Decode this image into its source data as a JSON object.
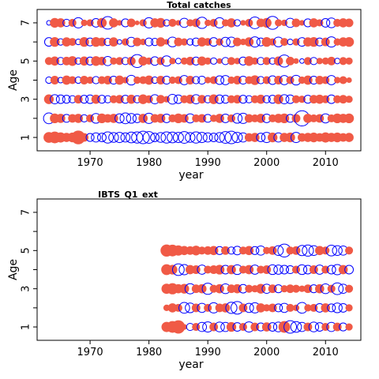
{
  "chart_data": [
    {
      "type": "scatter",
      "title": "Total catches",
      "xlabel": "year",
      "ylabel": "Age",
      "xlim": [
        1961,
        2016
      ],
      "ylim": [
        0.3,
        7.7
      ],
      "xticks": [
        "1970",
        "1980",
        "1990",
        "2000",
        "2010"
      ],
      "yticks": [
        "1",
        "3",
        "5",
        "7"
      ],
      "years": [
        1963,
        2014
      ],
      "ages": [
        1,
        2,
        3,
        4,
        5,
        6,
        7
      ],
      "legend": "none",
      "grid": false,
      "colors": {
        "positive": "#f05a46",
        "negative": "#0000ff"
      },
      "residuals": [
        {
          "age": 7,
          "values": [
            -0.2,
            0.9,
            0.8,
            -0.5,
            0.6,
            -1.0,
            0.4,
            0.5,
            -0.7,
            0.9,
            -1.5,
            0.8,
            0.3,
            -0.6,
            0.7,
            0.2,
            0.5,
            -1.0,
            0.8,
            0.9,
            -0.4,
            0.6,
            0.3,
            -0.8,
            0.5,
            0.7,
            -1.2,
            0.4,
            0.6,
            -1.0,
            0.5,
            0.8,
            -0.4,
            0.3,
            0.6,
            -1.3,
            0.7,
            0.9,
            -1.6,
            0.5,
            0.4,
            -0.8,
            0.7,
            0.3,
            -0.6,
            0.8,
            0.5,
            -0.7,
            -0.9,
            0.6,
            0.8,
            0.7
          ]
        },
        {
          "age": 6,
          "values": [
            -0.7,
            0.9,
            -0.4,
            0.8,
            0.6,
            -0.3,
            0.9,
            -0.6,
            0.9,
            0.7,
            -0.5,
            0.8,
            -0.2,
            0.5,
            -0.8,
            0.7,
            0.4,
            -0.6,
            -0.5,
            0.8,
            0.3,
            -0.9,
            0.7,
            0.5,
            -0.4,
            -0.6,
            0.8,
            0.6,
            -0.7,
            0.5,
            -0.8,
            -0.9,
            0.7,
            0.4,
            0.8,
            -1.0,
            -0.6,
            0.9,
            0.5,
            -0.9,
            0.6,
            -0.3,
            0.5,
            -0.7,
            0.8,
            0.9,
            -0.6,
            0.7,
            -1.0,
            0.5,
            0.8,
            0.9
          ]
        },
        {
          "age": 5,
          "values": [
            0.6,
            0.8,
            -0.5,
            0.7,
            0.9,
            -0.4,
            0.8,
            -0.6,
            0.9,
            0.7,
            -0.8,
            0.5,
            0.6,
            -0.5,
            0.7,
            -1.6,
            0.8,
            0.5,
            -0.7,
            0.6,
            -1.0,
            0.4,
            -0.3,
            0.5,
            0.7,
            -0.6,
            0.8,
            0.5,
            -0.4,
            0.3,
            -0.5,
            0.6,
            0.4,
            -0.6,
            0.9,
            0.5,
            -0.5,
            0.6,
            -0.4,
            0.8,
            -1.4,
            0.7,
            0.3,
            -0.2,
            0.6,
            -0.5,
            0.4,
            0.5,
            0.7,
            -0.3,
            0.6,
            0.5
          ]
        },
        {
          "age": 4,
          "values": [
            -0.4,
            0.7,
            -0.3,
            0.8,
            0.6,
            -0.4,
            0.7,
            0.5,
            -0.5,
            0.6,
            0.7,
            -0.6,
            0.8,
            0.4,
            -0.9,
            0.5,
            0.6,
            0.8,
            -0.4,
            0.7,
            -0.6,
            0.5,
            0.6,
            -0.8,
            0.7,
            -0.5,
            -0.6,
            0.4,
            0.6,
            -0.7,
            -0.8,
            0.5,
            0.7,
            -0.6,
            0.6,
            0.9,
            -0.5,
            0.6,
            -0.7,
            0.7,
            -0.8,
            0.6,
            -0.9,
            0.5,
            0.8,
            -0.6,
            0.7,
            0.6,
            -0.8,
            0.4,
            0.6,
            0.3
          ]
        },
        {
          "age": 3,
          "values": [
            0.9,
            -0.8,
            -0.7,
            -0.6,
            -0.5,
            0.7,
            -0.6,
            -0.7,
            0.8,
            -0.6,
            -0.5,
            0.6,
            0.7,
            -0.6,
            0.8,
            -0.5,
            0.9,
            0.6,
            -0.8,
            0.7,
            0.4,
            -0.9,
            -0.7,
            0.6,
            0.8,
            -0.8,
            0.7,
            -0.5,
            0.9,
            -0.7,
            -0.6,
            0.6,
            0.7,
            -0.6,
            -0.5,
            0.6,
            0.8,
            -0.5,
            -0.6,
            0.9,
            -0.8,
            -0.7,
            0.6,
            0.5,
            -0.6,
            0.7,
            0.8,
            0.6,
            -0.7,
            0.6,
            0.7,
            0.5
          ]
        },
        {
          "age": 2,
          "values": [
            -1.1,
            0.9,
            0.8,
            -0.6,
            0.7,
            0.8,
            -0.5,
            0.6,
            -0.9,
            0.9,
            0.7,
            0.8,
            -0.8,
            -1.1,
            -0.9,
            -0.7,
            0.8,
            -1.0,
            0.7,
            0.8,
            -0.7,
            0.6,
            0.9,
            0.7,
            -0.8,
            0.6,
            0.7,
            -0.6,
            0.5,
            0.8,
            -0.7,
            0.6,
            -0.9,
            -1.0,
            0.7,
            0.6,
            0.8,
            -0.7,
            0.6,
            0.8,
            0.9,
            -0.6,
            0.7,
            -2.2,
            0.8,
            0.6,
            0.7,
            -0.8,
            0.6,
            0.9,
            0.8,
            0.9
          ]
        },
        {
          "age": 1,
          "values": [
            1.1,
            1.3,
            1.0,
            0.8,
            0.9,
            1.8,
            0.7,
            -0.6,
            -0.8,
            -0.7,
            -1.2,
            -0.9,
            -1.0,
            -0.8,
            -1.1,
            -1.2,
            -1.5,
            -1.3,
            -0.7,
            -0.9,
            -1.2,
            -1.1,
            -1.0,
            -1.3,
            -0.9,
            -1.2,
            -1.0,
            -0.8,
            -0.7,
            -0.9,
            -1.3,
            -1.5,
            -1.0,
            -0.8,
            0.7,
            0.8,
            -0.7,
            -1.0,
            0.9,
            -0.8,
            0.8,
            0.9,
            -1.0,
            0.7,
            0.8,
            0.9,
            0.7,
            1.0,
            0.8,
            0.9,
            0.7,
            0.8
          ]
        }
      ]
    },
    {
      "type": "scatter",
      "title": "IBTS_Q1_ext",
      "xlabel": "year",
      "ylabel": "Age",
      "xlim": [
        1961,
        2016
      ],
      "ylim": [
        0.3,
        7.7
      ],
      "xticks": [
        "1970",
        "1980",
        "1990",
        "2000",
        "2010"
      ],
      "yticks": [
        "1",
        "3",
        "5",
        "7"
      ],
      "years": [
        1983,
        2014
      ],
      "ages": [
        1,
        2,
        3,
        4,
        5
      ],
      "legend": "none",
      "grid": false,
      "colors": {
        "positive": "#f05a46",
        "negative": "#0000ff"
      },
      "residuals": [
        {
          "age": 5,
          "values": [
            1.4,
            1.3,
            1.0,
            0.8,
            0.7,
            0.9,
            0.6,
            0.7,
            0.8,
            -0.6,
            0.7,
            -0.5,
            -0.7,
            0.6,
            0.8,
            -0.6,
            -0.8,
            0.5,
            0.7,
            -0.9,
            -1.6,
            0.6,
            0.7,
            -1.0,
            -1.2,
            -0.9,
            0.8,
            0.6,
            -1.1,
            -0.9,
            -0.8,
            0.6
          ]
        },
        {
          "age": 4,
          "values": [
            1.1,
            0.9,
            -1.3,
            -1.0,
            0.8,
            0.7,
            -0.8,
            0.6,
            0.7,
            0.9,
            -0.7,
            0.8,
            -0.9,
            0.6,
            0.8,
            -0.8,
            0.6,
            0.7,
            -0.9,
            -0.8,
            -0.7,
            -0.6,
            0.6,
            -0.9,
            -0.7,
            0.7,
            -0.8,
            0.6,
            -0.7,
            -1.0,
            0.8,
            -0.7
          ]
        },
        {
          "age": 3,
          "values": [
            1.0,
            1.2,
            0.8,
            0.9,
            -1.0,
            0.7,
            0.8,
            -1.2,
            0.6,
            0.8,
            -0.9,
            0.7,
            0.8,
            -0.7,
            0.6,
            0.5,
            0.9,
            -0.8,
            0.7,
            -0.6,
            0.5,
            0.7,
            0.6,
            0.4,
            0.7,
            -0.6,
            0.8,
            -0.9,
            0.6,
            -1.3,
            -0.8,
            0.6
          ]
        },
        {
          "age": 2,
          "values": [
            0.4,
            0.8,
            0.6,
            -1.1,
            -0.9,
            0.7,
            -0.8,
            0.6,
            -1.0,
            0.7,
            0.8,
            -1.2,
            -1.5,
            0.7,
            -0.8,
            -1.0,
            0.8,
            0.5,
            0.7,
            -0.6,
            -0.8,
            0.6,
            0.4,
            -1.1,
            0.5,
            0.6,
            -0.7,
            0.8,
            -0.6,
            -0.9,
            -0.7,
            0.5
          ]
        },
        {
          "age": 1,
          "values": [
            1.0,
            1.3,
            1.7,
            0.3,
            -0.5,
            0.6,
            -0.8,
            -1.0,
            0.7,
            -0.9,
            -0.8,
            0.9,
            -0.7,
            0.6,
            -1.0,
            0.7,
            -0.6,
            0.8,
            -0.7,
            -0.9,
            1.3,
            -1.5,
            -1.1,
            -0.8,
            0.7,
            -0.9,
            -0.7,
            0.6,
            -0.8,
            0.7,
            -0.6,
            0.5
          ]
        }
      ]
    }
  ]
}
